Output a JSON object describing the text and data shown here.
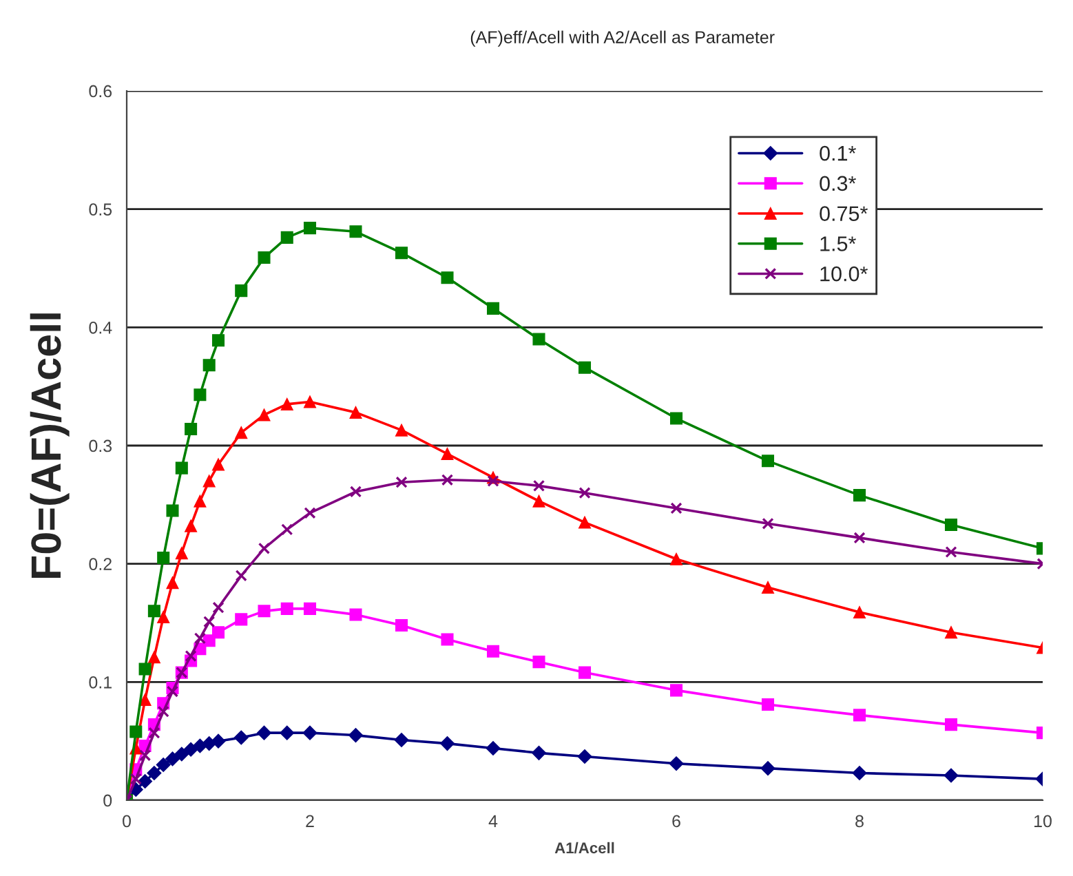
{
  "chart_data": {
    "type": "line",
    "title": "(AF)eff/Acell with A2/Acell as Parameter",
    "xlabel": "A1/Acell",
    "ylabel": "F0=(AF)/Acell",
    "x": [
      0,
      0.1,
      0.2,
      0.3,
      0.4,
      0.5,
      0.6,
      0.7,
      0.8,
      0.9,
      1.0,
      1.25,
      1.5,
      1.75,
      2,
      2.5,
      3,
      3.5,
      4,
      4.5,
      5,
      6,
      7,
      8,
      9,
      10
    ],
    "series": [
      {
        "name": "0.1*",
        "color": "#000080",
        "marker": "diamond",
        "values": [
          0,
          0.009,
          0.016,
          0.023,
          0.03,
          0.035,
          0.039,
          0.043,
          0.046,
          0.048,
          0.05,
          0.053,
          0.057,
          0.057,
          0.057,
          0.055,
          0.051,
          0.048,
          0.044,
          0.04,
          0.037,
          0.031,
          0.027,
          0.023,
          0.021,
          0.018
        ]
      },
      {
        "name": "0.3*",
        "color": "#ff00ff",
        "marker": "square",
        "values": [
          0,
          0.026,
          0.046,
          0.064,
          0.082,
          0.095,
          0.108,
          0.118,
          0.128,
          0.135,
          0.142,
          0.153,
          0.16,
          0.162,
          0.162,
          0.157,
          0.148,
          0.136,
          0.126,
          0.117,
          0.108,
          0.093,
          0.081,
          0.072,
          0.064,
          0.057
        ]
      },
      {
        "name": "0.75*",
        "color": "#ff0000",
        "marker": "triangle",
        "values": [
          0,
          0.044,
          0.085,
          0.121,
          0.155,
          0.184,
          0.209,
          0.232,
          0.253,
          0.27,
          0.284,
          0.311,
          0.326,
          0.335,
          0.337,
          0.328,
          0.313,
          0.293,
          0.273,
          0.253,
          0.235,
          0.204,
          0.18,
          0.159,
          0.142,
          0.129
        ]
      },
      {
        "name": "1.5*",
        "color": "#008000",
        "marker": "square",
        "values": [
          0,
          0.058,
          0.111,
          0.16,
          0.205,
          0.245,
          0.281,
          0.314,
          0.343,
          0.368,
          0.389,
          0.431,
          0.459,
          0.476,
          0.484,
          0.481,
          0.463,
          0.442,
          0.416,
          0.39,
          0.366,
          0.323,
          0.287,
          0.258,
          0.233,
          0.213
        ]
      },
      {
        "name": "10.0*",
        "color": "#800080",
        "marker": "cross",
        "values": [
          0,
          0.018,
          0.038,
          0.057,
          0.075,
          0.092,
          0.108,
          0.122,
          0.137,
          0.151,
          0.163,
          0.19,
          0.213,
          0.229,
          0.243,
          0.261,
          0.269,
          0.271,
          0.27,
          0.266,
          0.26,
          0.247,
          0.234,
          0.222,
          0.21,
          0.2
        ]
      }
    ],
    "xlim": [
      0,
      10
    ],
    "xticks": [
      0,
      2,
      4,
      6,
      8,
      10
    ],
    "ylim": [
      0,
      0.6
    ],
    "yticks": [
      0,
      0.1,
      0.2,
      0.3,
      0.4,
      0.5,
      0.6
    ],
    "grid": "y",
    "legend": "top right",
    "line_style": "solid"
  }
}
